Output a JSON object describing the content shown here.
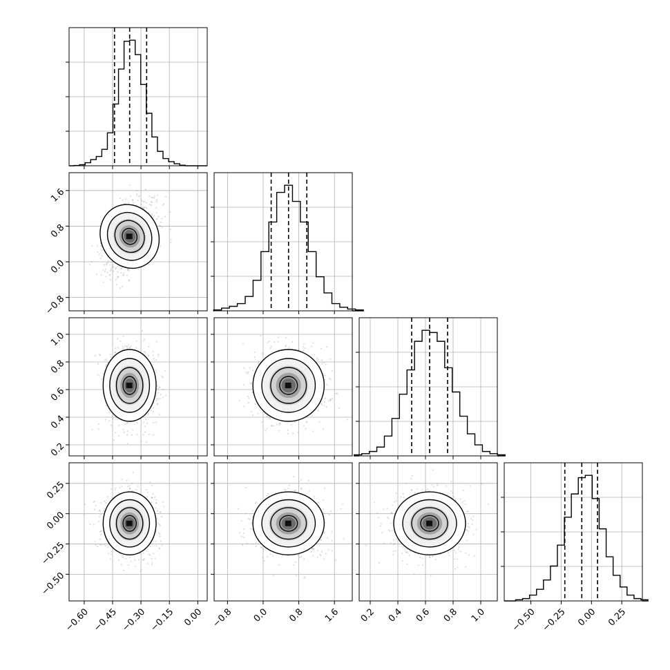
{
  "chart_data": {
    "type": "corner",
    "n_params": 4,
    "params": [
      {
        "label": "",
        "range": [
          -0.68,
          0.05
        ],
        "ticks": [
          -0.6,
          -0.45,
          -0.3,
          -0.15,
          0.0
        ],
        "tick_labels": [
          "−0.60",
          "−0.45",
          "−0.30",
          "−0.15",
          "0.00"
        ],
        "mean": -0.36,
        "std": 0.07,
        "quantiles": [
          -0.44,
          -0.36,
          -0.27
        ]
      },
      {
        "label": "",
        "range": [
          -1.1,
          2.0
        ],
        "ticks": [
          -0.8,
          0.0,
          0.8,
          1.6
        ],
        "tick_labels": [
          "−0.8",
          "0.0",
          "0.8",
          "1.6"
        ],
        "mean": 0.57,
        "std": 0.4,
        "quantiles": [
          0.18,
          0.57,
          0.98
        ]
      },
      {
        "label": "",
        "range": [
          0.12,
          1.12
        ],
        "ticks": [
          0.2,
          0.4,
          0.6,
          0.8,
          1.0
        ],
        "tick_labels": [
          "0.2",
          "0.4",
          "0.6",
          "0.8",
          "1.0"
        ],
        "mean": 0.63,
        "std": 0.13,
        "quantiles": [
          0.5,
          0.63,
          0.76
        ]
      },
      {
        "label": "",
        "range": [
          -0.72,
          0.42
        ],
        "ticks": [
          -0.5,
          -0.25,
          0.0,
          0.25
        ],
        "tick_labels": [
          "−0.50",
          "−0.25",
          "0.00",
          "0.25"
        ],
        "mean": -0.08,
        "std": 0.13,
        "quantiles": [
          -0.22,
          -0.08,
          0.05
        ]
      }
    ],
    "correlation": {
      "0-1": 0.35,
      "0-2": 0.0,
      "0-3": 0.0,
      "1-2": 0.0,
      "1-3": 0.0,
      "2-3": 0.0
    },
    "histograms": [
      [
        0.3,
        1,
        3,
        6,
        9,
        16,
        32,
        60,
        94,
        121,
        122,
        108,
        79,
        51,
        28,
        14,
        7,
        4,
        2,
        0.5
      ],
      [
        1,
        3,
        5,
        8,
        16,
        34,
        66,
        99,
        132,
        140,
        122,
        99,
        66,
        38,
        20,
        8,
        4,
        2,
        1
      ],
      [
        1,
        2,
        4,
        8,
        18,
        34,
        56,
        78,
        104,
        114,
        112,
        104,
        80,
        58,
        36,
        20,
        10,
        4,
        2,
        1
      ],
      [
        1,
        2,
        5,
        10,
        18,
        30,
        48,
        72,
        92,
        106,
        108,
        88,
        62,
        38,
        22,
        12,
        5,
        2,
        1
      ]
    ],
    "grid": true,
    "contour_levels": [
      "0.5-sigma",
      "1-sigma",
      "1.5-sigma",
      "2-sigma"
    ]
  }
}
